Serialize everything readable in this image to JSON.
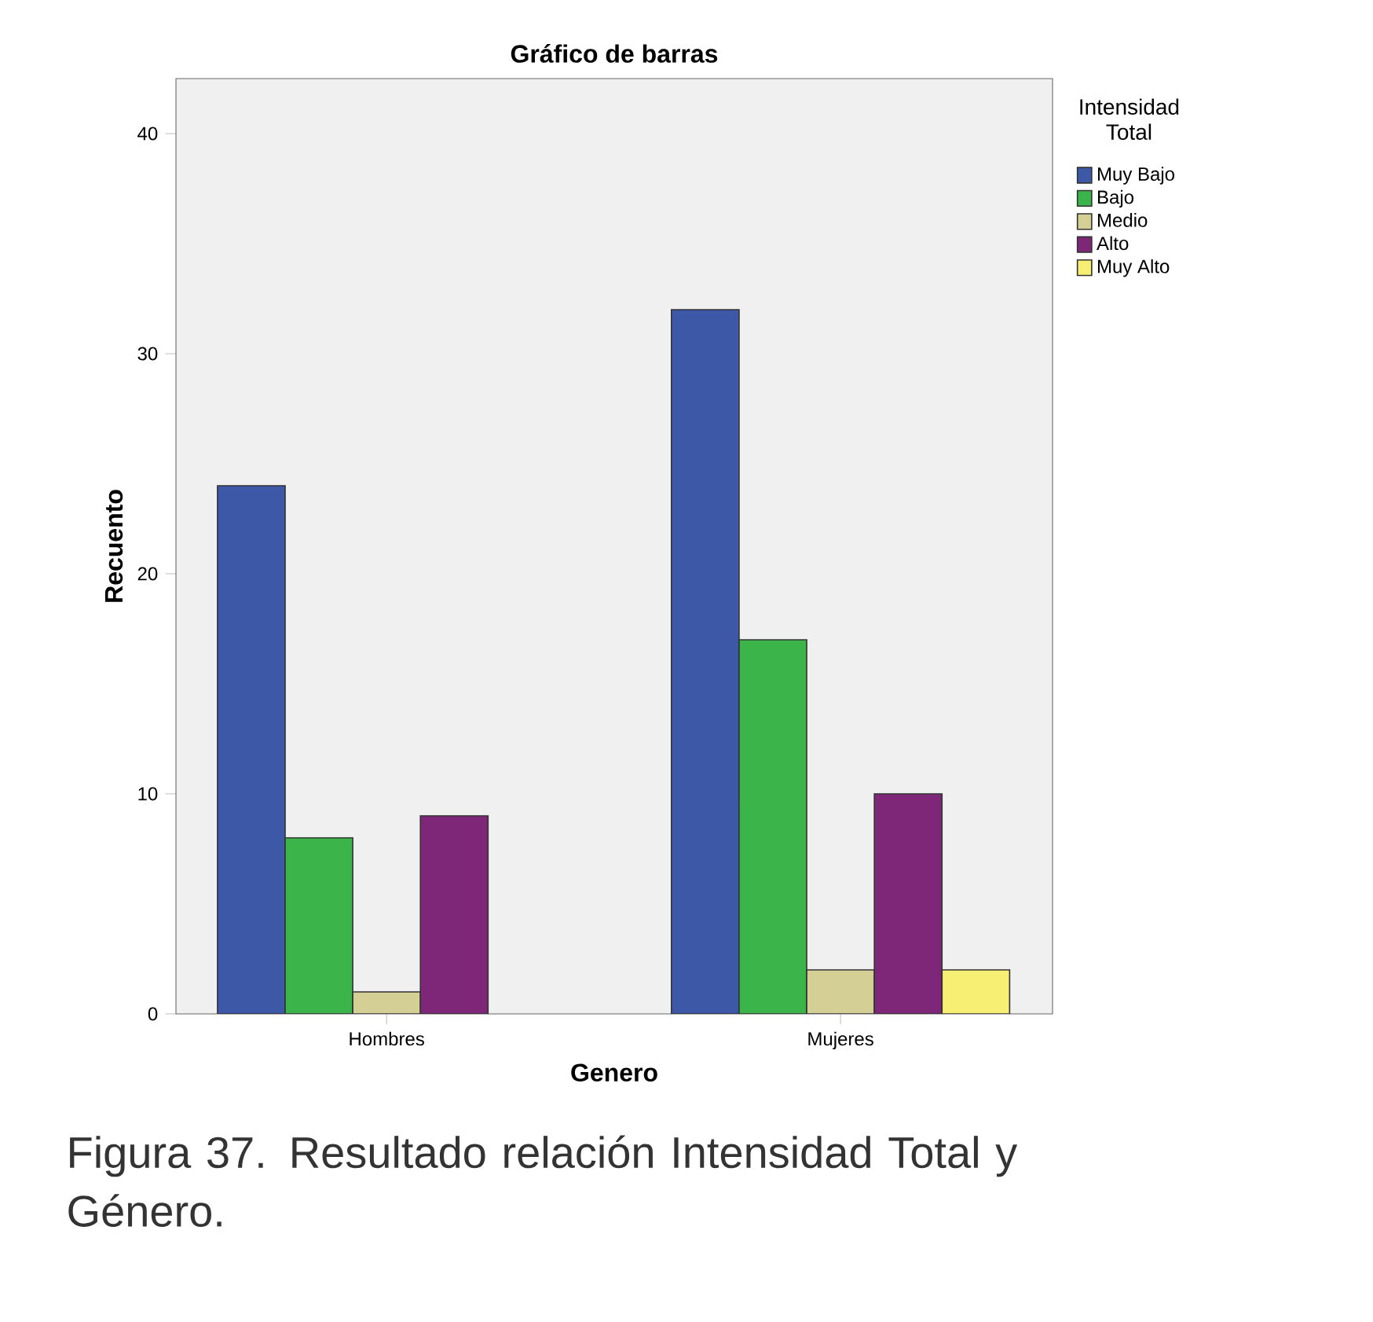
{
  "chart_data": {
    "type": "bar",
    "title": "Gráfico de barras",
    "xlabel": "Genero",
    "ylabel": "Recuento",
    "legend_title": "Intensidad Total",
    "categories": [
      "Hombres",
      "Mujeres"
    ],
    "series": [
      {
        "name": "Muy Bajo",
        "color": "#3e58a8",
        "values": [
          24,
          32
        ]
      },
      {
        "name": "Bajo",
        "color": "#3bb44a",
        "values": [
          8,
          17
        ]
      },
      {
        "name": "Medio",
        "color": "#d4cf95",
        "values": [
          1,
          2
        ]
      },
      {
        "name": "Alto",
        "color": "#7e2677",
        "values": [
          9,
          10
        ]
      },
      {
        "name": "Muy Alto",
        "color": "#f7ef73",
        "values": [
          null,
          2
        ]
      }
    ],
    "ylim": [
      0,
      42.5
    ],
    "yticks": [
      0,
      10,
      20,
      30,
      40
    ],
    "grid": false,
    "legend": "right",
    "annotations": [
      "Figura 37. Resultado relación Intensidad Total y Género."
    ]
  }
}
